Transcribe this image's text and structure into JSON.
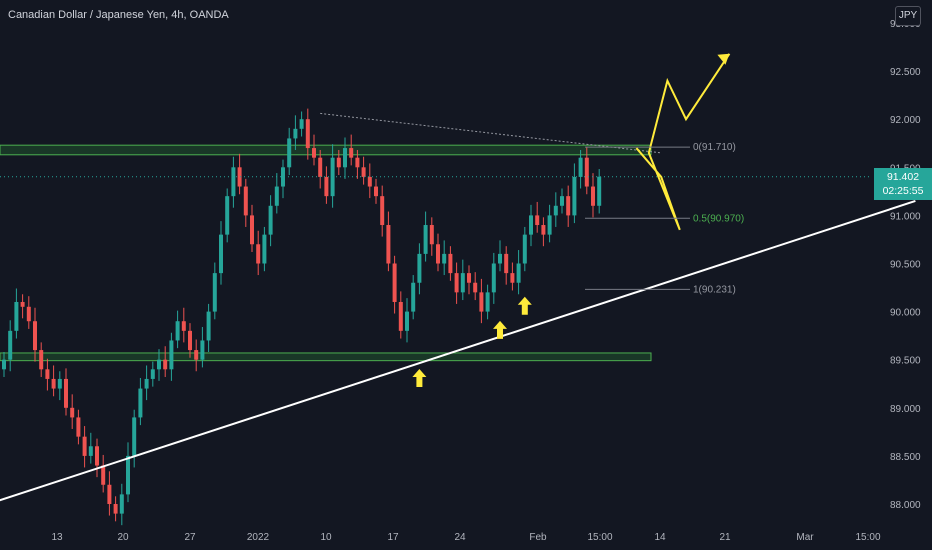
{
  "header": {
    "symbol_title": "Canadian Dollar / Japanese Yen, 4h, OANDA",
    "currency": "JPY"
  },
  "price_tag": {
    "price": "91.402",
    "countdown": "02:25:55",
    "color": "#26a69a"
  },
  "colors": {
    "background": "#131722",
    "up_candle": "#26a69a",
    "down_candle": "#ef5350",
    "zone_border": "#4caf50",
    "zone_fill": "#1e4d2b",
    "trendline": "#ffffff",
    "projection": "#ffeb3b",
    "arrow": "#ffeb3b"
  },
  "chart_data": {
    "type": "candlestick",
    "y_axis": {
      "ticks": [
        "93.000",
        "92.500",
        "92.000",
        "91.500",
        "91.000",
        "90.500",
        "90.000",
        "89.500",
        "89.000",
        "88.500",
        "88.000"
      ],
      "ylim": [
        87.8,
        93.0
      ]
    },
    "x_axis": {
      "ticks": [
        "13",
        "20",
        "27",
        "2022",
        "10",
        "17",
        "24",
        "Feb",
        "15:00",
        "14",
        "21",
        "Mar",
        "15:00"
      ]
    },
    "last_price": 91.402,
    "zones": [
      {
        "name": "resistance-zone",
        "from": 91.63,
        "to": 91.73
      },
      {
        "name": "support-zone",
        "from": 89.49,
        "to": 89.57
      }
    ],
    "fibonacci": [
      {
        "label": "0(91.710)",
        "value": 91.71
      },
      {
        "label": "0.5(90.970)",
        "value": 90.97
      },
      {
        "label": "1(90.231)",
        "value": 90.231
      }
    ],
    "rising_trendline": [
      [
        -12,
        87.8
      ],
      [
        147,
        91.15
      ]
    ],
    "falling_trendline": [
      [
        51,
        92.06
      ],
      [
        106,
        91.65
      ]
    ],
    "projection_path": [
      [
        102,
        91.7
      ],
      [
        106,
        91.4
      ],
      [
        109,
        90.85
      ],
      [
        104,
        91.65
      ],
      [
        107,
        92.4
      ],
      [
        110,
        92.0
      ],
      [
        117,
        92.68
      ]
    ],
    "closes": [
      89.5,
      89.8,
      90.1,
      90.05,
      89.9,
      89.6,
      89.4,
      89.3,
      89.2,
      89.3,
      89.0,
      88.9,
      88.7,
      88.5,
      88.6,
      88.4,
      88.2,
      88.0,
      87.9,
      88.1,
      88.5,
      88.9,
      89.2,
      89.3,
      89.4,
      89.5,
      89.4,
      89.7,
      89.9,
      89.8,
      89.6,
      89.5,
      89.7,
      90.0,
      90.4,
      90.8,
      91.2,
      91.5,
      91.3,
      91.0,
      90.7,
      90.5,
      90.8,
      91.1,
      91.3,
      91.5,
      91.8,
      91.9,
      92.0,
      91.7,
      91.6,
      91.4,
      91.2,
      91.6,
      91.5,
      91.7,
      91.6,
      91.5,
      91.4,
      91.3,
      91.2,
      90.9,
      90.5,
      90.1,
      89.8,
      90.0,
      90.3,
      90.6,
      90.9,
      90.7,
      90.5,
      90.6,
      90.4,
      90.2,
      90.4,
      90.3,
      90.2,
      90.0,
      90.2,
      90.5,
      90.6,
      90.4,
      90.3,
      90.5,
      90.8,
      91.0,
      90.9,
      90.8,
      91.0,
      91.1,
      91.2,
      91.0,
      91.4,
      91.6,
      91.3,
      91.1,
      91.402
    ],
    "arrows": [
      {
        "x": 67,
        "value": 89.3
      },
      {
        "x": 80,
        "value": 89.8
      },
      {
        "x": 84,
        "value": 90.05
      }
    ]
  }
}
